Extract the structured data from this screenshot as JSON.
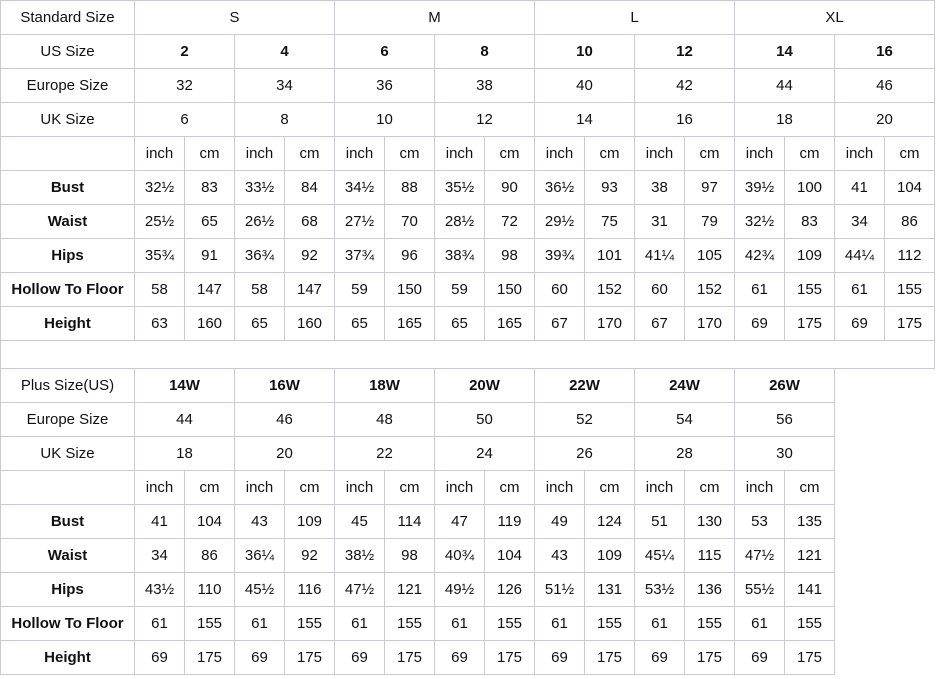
{
  "standard": {
    "header": {
      "label": "Standard Size",
      "groups": [
        "S",
        "M",
        "L",
        "XL"
      ]
    },
    "us": {
      "label": "US Size",
      "values": [
        "2",
        "4",
        "6",
        "8",
        "10",
        "12",
        "14",
        "16"
      ]
    },
    "europe": {
      "label": "Europe Size",
      "values": [
        "32",
        "34",
        "36",
        "38",
        "40",
        "42",
        "44",
        "46"
      ]
    },
    "uk": {
      "label": "UK Size",
      "values": [
        "6",
        "8",
        "10",
        "12",
        "14",
        "16",
        "18",
        "20"
      ]
    },
    "units": [
      "inch",
      "cm"
    ],
    "measurements": [
      {
        "label": "Bust",
        "values": [
          "32½",
          "83",
          "33½",
          "84",
          "34½",
          "88",
          "35½",
          "90",
          "36½",
          "93",
          "38",
          "97",
          "39½",
          "100",
          "41",
          "104"
        ]
      },
      {
        "label": "Waist",
        "values": [
          "25½",
          "65",
          "26½",
          "68",
          "27½",
          "70",
          "28½",
          "72",
          "29½",
          "75",
          "31",
          "79",
          "32½",
          "83",
          "34",
          "86"
        ]
      },
      {
        "label": "Hips",
        "values": [
          "35¾",
          "91",
          "36¾",
          "92",
          "37¾",
          "96",
          "38¾",
          "98",
          "39¾",
          "101",
          "41¼",
          "105",
          "42¾",
          "109",
          "44¼",
          "112"
        ]
      },
      {
        "label": "Hollow To Floor",
        "values": [
          "58",
          "147",
          "58",
          "147",
          "59",
          "150",
          "59",
          "150",
          "60",
          "152",
          "60",
          "152",
          "61",
          "155",
          "61",
          "155"
        ]
      },
      {
        "label": "Height",
        "values": [
          "63",
          "160",
          "65",
          "160",
          "65",
          "165",
          "65",
          "165",
          "67",
          "170",
          "67",
          "170",
          "69",
          "175",
          "69",
          "175"
        ]
      }
    ]
  },
  "plus": {
    "us": {
      "label": "Plus Size(US)",
      "values": [
        "14W",
        "16W",
        "18W",
        "20W",
        "22W",
        "24W",
        "26W"
      ]
    },
    "europe": {
      "label": "Europe Size",
      "values": [
        "44",
        "46",
        "48",
        "50",
        "52",
        "54",
        "56"
      ]
    },
    "uk": {
      "label": "UK Size",
      "values": [
        "18",
        "20",
        "22",
        "24",
        "26",
        "28",
        "30"
      ]
    },
    "units": [
      "inch",
      "cm"
    ],
    "measurements": [
      {
        "label": "Bust",
        "values": [
          "41",
          "104",
          "43",
          "109",
          "45",
          "114",
          "47",
          "119",
          "49",
          "124",
          "51",
          "130",
          "53",
          "135"
        ]
      },
      {
        "label": "Waist",
        "values": [
          "34",
          "86",
          "36¼",
          "92",
          "38½",
          "98",
          "40¾",
          "104",
          "43",
          "109",
          "45¼",
          "115",
          "47½",
          "121"
        ]
      },
      {
        "label": "Hips",
        "values": [
          "43½",
          "110",
          "45½",
          "116",
          "47½",
          "121",
          "49½",
          "126",
          "51½",
          "131",
          "53½",
          "136",
          "55½",
          "141"
        ]
      },
      {
        "label": "Hollow To Floor",
        "values": [
          "61",
          "155",
          "61",
          "155",
          "61",
          "155",
          "61",
          "155",
          "61",
          "155",
          "61",
          "155",
          "61",
          "155"
        ]
      },
      {
        "label": "Height",
        "values": [
          "69",
          "175",
          "69",
          "175",
          "69",
          "175",
          "69",
          "175",
          "69",
          "175",
          "69",
          "175",
          "69",
          "175"
        ]
      }
    ]
  }
}
